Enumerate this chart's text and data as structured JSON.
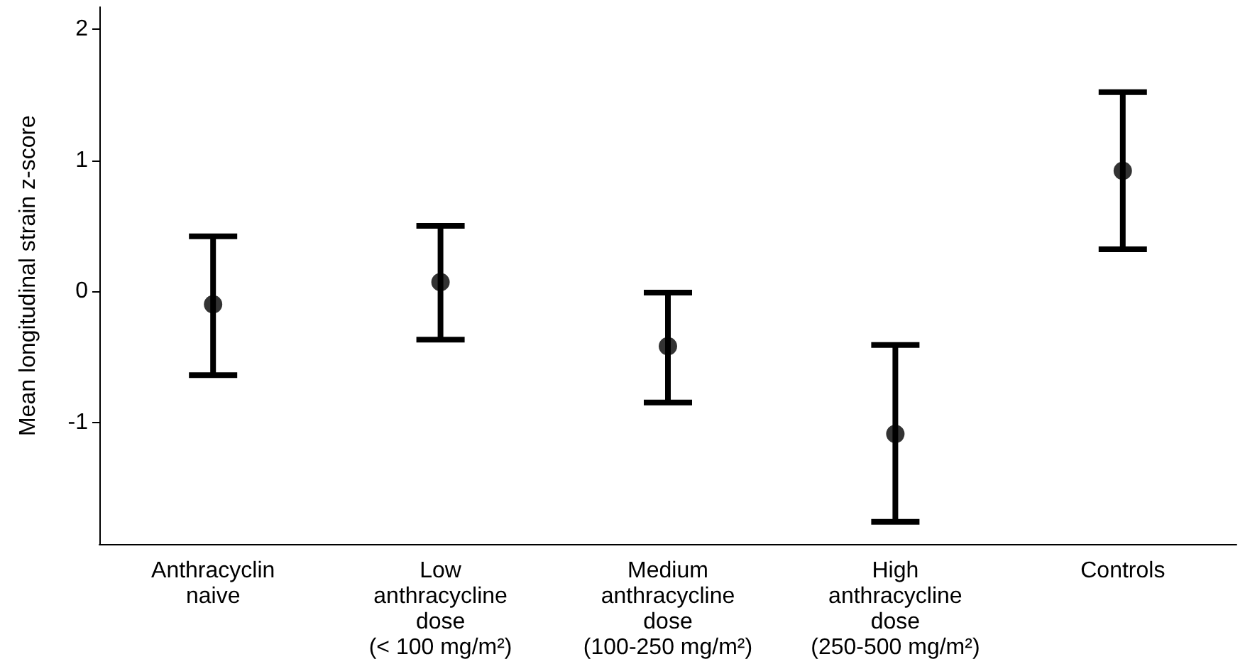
{
  "chart_data": {
    "type": "scatter",
    "ylabel": "Mean longitudinal strain z-score",
    "categories": [
      "Anthracyclin\nnaive",
      "Low\nanthracycline\ndose\n(< 100 mg/m²)",
      "Medium\nanthracycline\ndose\n(100-250 mg/m²)",
      "High\nanthracycline\ndose\n(250-500 mg/m²)",
      "Controls"
    ],
    "series": [
      {
        "color": "#000000",
        "values": [
          -0.1,
          0.07,
          -0.42,
          -1.09,
          0.92
        ],
        "errors": [
          [
            -0.64,
            0.42
          ],
          [
            -0.37,
            0.5
          ],
          [
            -0.85,
            -0.01
          ],
          [
            -1.76,
            -0.41
          ],
          [
            0.32,
            1.52
          ]
        ]
      }
    ],
    "ylim": [
      -1.93,
      2.17
    ],
    "yticks": [
      -1,
      0,
      1,
      2
    ],
    "grid": false,
    "marker": "circle"
  }
}
